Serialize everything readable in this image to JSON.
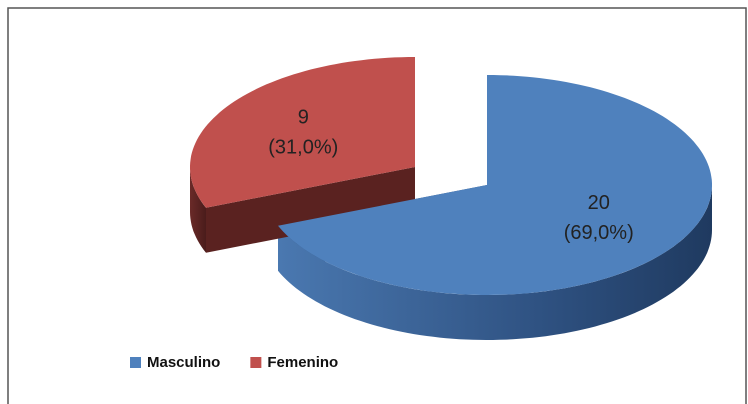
{
  "chart_data": {
    "type": "pie3d",
    "categories": [
      "Masculino",
      "Femenino"
    ],
    "values": [
      20,
      9
    ],
    "percentages": [
      69.0,
      31.0
    ],
    "percentage_labels": [
      "(69,0%)",
      "(31,0%)"
    ],
    "colors": [
      "#4f81bd",
      "#c0504d"
    ],
    "legend": "bottom"
  }
}
